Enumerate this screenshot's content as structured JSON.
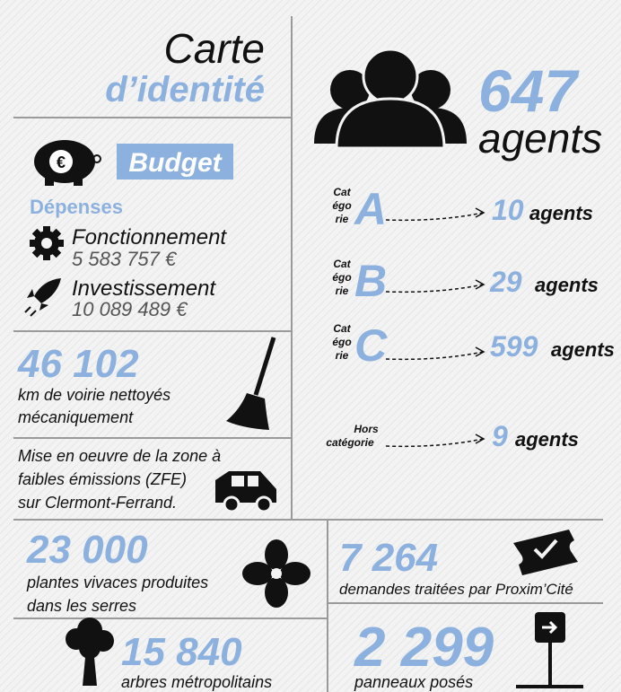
{
  "header": {
    "title_line1": "Carte",
    "title_line2": "d’identité"
  },
  "budget": {
    "label": "Budget",
    "subtitle": "Dépenses",
    "items": [
      {
        "name": "Fonctionnement",
        "amount": "5 583 757 €"
      },
      {
        "name": "Investissement",
        "amount": "10 089 489 €"
      }
    ]
  },
  "agents": {
    "total": "647",
    "unit": "agents",
    "categories": [
      {
        "prefix": [
          "Cat",
          "égo",
          "rie"
        ],
        "letter": "A",
        "count": "10",
        "unit": "agents"
      },
      {
        "prefix": [
          "Cat",
          "égo",
          "rie"
        ],
        "letter": "B",
        "count": "29",
        "unit": "agents"
      },
      {
        "prefix": [
          "Cat",
          "égo",
          "rie"
        ],
        "letter": "C",
        "count": "599",
        "unit": "agents"
      },
      {
        "prefix": [
          "Hors",
          "catégorie"
        ],
        "letter": "",
        "count": "9",
        "unit": "agents"
      }
    ]
  },
  "voirie": {
    "value": "46 102",
    "lines": [
      "km de voirie nettoyés",
      "mécaniquement"
    ]
  },
  "zfe": {
    "lines": [
      "Mise en oeuvre de la zone à",
      "faibles émissions (ZFE)",
      "sur Clermont-Ferrand."
    ]
  },
  "plantes": {
    "value": "23 000",
    "lines": [
      "plantes vivaces produites",
      "dans les serres"
    ]
  },
  "arbres": {
    "value": "15 840",
    "lines": [
      "arbres métropolitains"
    ]
  },
  "demandes": {
    "value": "7 264",
    "lines": [
      "demandes traitées par Proxim’Cité"
    ]
  },
  "panneaux": {
    "value": "2 299",
    "lines": [
      "panneaux posés"
    ]
  }
}
